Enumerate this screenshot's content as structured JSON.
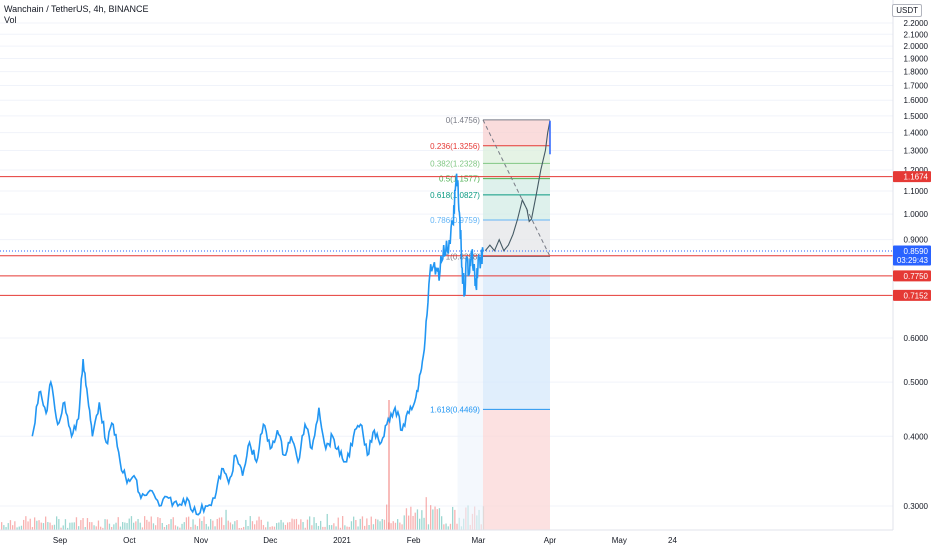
{
  "legend": {
    "title": "Wanchain / TetherUS, 4h, BINANCE",
    "volume_label": "Vol"
  },
  "currency_button": "USDT",
  "colors": {
    "price_line": "#2196f3",
    "level_line": "#e53935",
    "price_tag": "#2962ff",
    "fib_top_zone": "#f8d0d0",
    "fib_green_zone": "#dcefdc",
    "fib_teal_zone": "#d3ece6",
    "fib_grey_zone": "#e4e5e8",
    "fib_blue_zone": "#d6e8fb",
    "proj_red_zone": "#fbd7d7"
  },
  "chart_data": {
    "type": "line",
    "title": "Wanchain / TetherUS, 4h, BINANCE",
    "scale": "log",
    "ylim": [
      0.27,
      2.3
    ],
    "y_ticks": [
      "2.2000",
      "2.1000",
      "2.0000",
      "1.9000",
      "1.8000",
      "1.7000",
      "1.6000",
      "1.5000",
      "1.4000",
      "1.3000",
      "1.2000",
      "1.1000",
      "1.0000",
      "0.9000",
      "0.6000",
      "0.5000",
      "0.4000",
      "0.3000"
    ],
    "x_ticks": [
      "Sep",
      "Oct",
      "Nov",
      "Dec",
      "2021",
      "Feb",
      "Mar",
      "Apr",
      "May",
      "24"
    ],
    "price_series": {
      "name": "WANUSDT",
      "points": [
        [
          "Aug 20",
          0.4
        ],
        [
          "Aug 23",
          0.48
        ],
        [
          "Aug 26",
          0.44
        ],
        [
          "Aug 28",
          0.5
        ],
        [
          "Aug 31",
          0.42
        ],
        [
          "Sep 3",
          0.46
        ],
        [
          "Sep 6",
          0.4
        ],
        [
          "Sep 9",
          0.43
        ],
        [
          "Sep 11",
          0.55
        ],
        [
          "Sep 13",
          0.47
        ],
        [
          "Sep 15",
          0.4
        ],
        [
          "Sep 18",
          0.46
        ],
        [
          "Sep 21",
          0.39
        ],
        [
          "Sep 24",
          0.42
        ],
        [
          "Sep 27",
          0.36
        ],
        [
          "Sep 30",
          0.33
        ],
        [
          "Oct 3",
          0.34
        ],
        [
          "Oct 6",
          0.31
        ],
        [
          "Oct 10",
          0.32
        ],
        [
          "Oct 14",
          0.3
        ],
        [
          "Oct 18",
          0.31
        ],
        [
          "Oct 22",
          0.3
        ],
        [
          "Oct 26",
          0.31
        ],
        [
          "Oct 30",
          0.29
        ],
        [
          "Nov 3",
          0.3
        ],
        [
          "Nov 7",
          0.31
        ],
        [
          "Nov 10",
          0.35
        ],
        [
          "Nov 13",
          0.33
        ],
        [
          "Nov 16",
          0.37
        ],
        [
          "Nov 19",
          0.34
        ],
        [
          "Nov 22",
          0.39
        ],
        [
          "Nov 25",
          0.36
        ],
        [
          "Nov 28",
          0.42
        ],
        [
          "Dec 1",
          0.38
        ],
        [
          "Dec 4",
          0.41
        ],
        [
          "Dec 7",
          0.37
        ],
        [
          "Dec 10",
          0.4
        ],
        [
          "Dec 13",
          0.36
        ],
        [
          "Dec 16",
          0.42
        ],
        [
          "Dec 19",
          0.38
        ],
        [
          "Dec 22",
          0.45
        ],
        [
          "Dec 25",
          0.38
        ],
        [
          "Dec 28",
          0.4
        ],
        [
          "Dec 31",
          0.37
        ],
        [
          "Jan 3",
          0.36
        ],
        [
          "Jan 6",
          0.4
        ],
        [
          "Jan 9",
          0.42
        ],
        [
          "Jan 12",
          0.37
        ],
        [
          "Jan 15",
          0.41
        ],
        [
          "Jan 18",
          0.39
        ],
        [
          "Jan 21",
          0.43
        ],
        [
          "Jan 24",
          0.45
        ],
        [
          "Jan 27",
          0.41
        ],
        [
          "Jan 30",
          0.44
        ],
        [
          "Feb 2",
          0.47
        ],
        [
          "Feb 4",
          0.52
        ],
        [
          "Feb 6",
          0.6
        ],
        [
          "Feb 8",
          0.78
        ],
        [
          "Feb 10",
          0.82
        ],
        [
          "Feb 12",
          0.76
        ],
        [
          "Feb 14",
          0.88
        ],
        [
          "Feb 16",
          0.85
        ],
        [
          "Feb 18",
          0.96
        ],
        [
          "Feb 19",
          1.1
        ],
        [
          "Feb 20",
          1.15
        ],
        [
          "Feb 21",
          0.98
        ],
        [
          "Feb 22",
          0.8
        ],
        [
          "Feb 23",
          0.72
        ],
        [
          "Feb 24",
          0.84
        ],
        [
          "Feb 25",
          0.78
        ],
        [
          "Feb 26",
          0.86
        ],
        [
          "Feb 27",
          0.8
        ],
        [
          "Feb 28",
          0.74
        ],
        [
          "Mar 1",
          0.84
        ],
        [
          "Mar 2",
          0.82
        ],
        [
          "Mar 3",
          0.86
        ]
      ]
    },
    "projection_series": {
      "name": "projection",
      "points": [
        [
          "Mar 4",
          0.86
        ],
        [
          "Mar 6",
          0.88
        ],
        [
          "Mar 8",
          0.86
        ],
        [
          "Mar 10",
          0.9
        ],
        [
          "Mar 12",
          0.86
        ],
        [
          "Mar 14",
          0.88
        ],
        [
          "Mar 16",
          0.92
        ],
        [
          "Mar 18",
          0.98
        ],
        [
          "Mar 20",
          1.06
        ],
        [
          "Mar 22",
          1.02
        ],
        [
          "Mar 23",
          0.97
        ],
        [
          "Mar 24",
          0.98
        ],
        [
          "Mar 26",
          1.08
        ],
        [
          "Mar 28",
          1.2
        ],
        [
          "Mar 30",
          1.3
        ],
        [
          "Mar 31",
          1.4
        ],
        [
          "Apr 1",
          1.47
        ]
      ]
    },
    "fibonacci": {
      "from_date": "Mar 3",
      "to_date": "Apr 1",
      "levels": [
        {
          "label": "0(1.4756)",
          "price": 1.4756,
          "color": "#787b86"
        },
        {
          "label": "0.236(1.3256)",
          "price": 1.3256,
          "color": "#e53935"
        },
        {
          "label": "0.382(1.2328)",
          "price": 1.2328,
          "color": "#81c784"
        },
        {
          "label": "0.5(1.1577)",
          "price": 1.1577,
          "color": "#4caf50"
        },
        {
          "label": "0.618(1.0827)",
          "price": 1.0827,
          "color": "#089981"
        },
        {
          "label": "0.786(0.9759)",
          "price": 0.9759,
          "color": "#64b5f6"
        },
        {
          "label": "1(0.8398)",
          "price": 0.8398,
          "color": "#787b86"
        },
        {
          "label": "1.618(0.4469)",
          "price": 0.4469,
          "color": "#2196f3"
        }
      ]
    },
    "horizontal_levels": [
      {
        "label": "1.1674",
        "price": 1.1674
      },
      {
        "label": "0.8423",
        "price": 0.8423
      },
      {
        "label": "0.7750",
        "price": 0.775
      },
      {
        "label": "0.7152",
        "price": 0.7152
      }
    ],
    "last_price": {
      "label": "0.8590",
      "price": 0.859,
      "countdown": "03:29:43"
    }
  }
}
